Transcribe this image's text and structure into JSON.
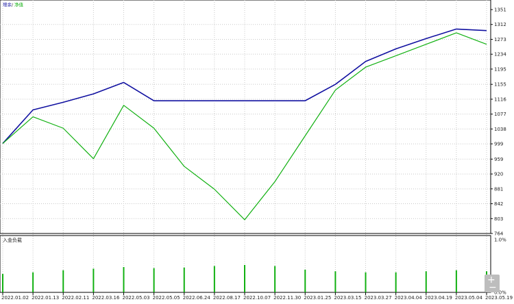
{
  "chart_data": [
    {
      "type": "line",
      "title": "",
      "legend": {
        "items": [
          {
            "name": "增余",
            "color": "#1010a0"
          },
          {
            "name": "净值",
            "color": "#10b010"
          }
        ],
        "placement": "top-left"
      },
      "ylim": [
        764,
        1351
      ],
      "yticks": [
        "1351",
        "1312",
        "1273",
        "1234",
        "1195",
        "1155",
        "1116",
        "1077",
        "1038",
        "999",
        "959",
        "920",
        "881",
        "842",
        "803",
        "764"
      ],
      "x": [
        "2022.01.02",
        "2022.01.13",
        "2022.02.11",
        "2022.03.16",
        "2022.05.03",
        "2022.05.05",
        "2022.06.24",
        "2022.08.17",
        "2022.10.07",
        "2022.11.30",
        "2023.01.25",
        "2023.03.15",
        "2023.03.27",
        "2023.04.04",
        "2023.04.19",
        "2023.05.04",
        "2023.05.19"
      ],
      "series": [
        {
          "name": "增余",
          "color": "#1010a0",
          "values": [
            1000,
            1088,
            1108,
            1130,
            1160,
            1112,
            1112,
            1112,
            1112,
            1112,
            1112,
            1155,
            1215,
            1248,
            1275,
            1300,
            1296
          ]
        },
        {
          "name": "净值",
          "color": "#10b010",
          "values": [
            1000,
            1070,
            1040,
            960,
            1100,
            1040,
            940,
            880,
            800,
            900,
            1020,
            1140,
            1200,
            1230,
            1260,
            1290,
            1260
          ]
        }
      ],
      "grid": true
    },
    {
      "type": "bar",
      "title": "入金负载",
      "ylim": [
        0,
        1
      ],
      "yticks": [
        "1.0%",
        "0.0%"
      ],
      "values": [
        0.35,
        0.38,
        0.42,
        0.45,
        0.48,
        0.46,
        0.47,
        0.5,
        0.52,
        0.5,
        0.43,
        0.4,
        0.38,
        0.38,
        0.4,
        0.42,
        0.4
      ],
      "color": "#10b010"
    }
  ],
  "ui": {
    "zoom_in": "+",
    "zoom_out": "−"
  }
}
